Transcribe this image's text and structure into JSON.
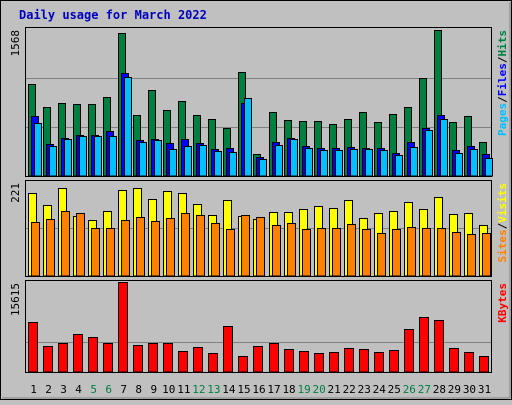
{
  "chart_data": {
    "type": "bar",
    "title": "Daily usage for March 2022",
    "categories": [
      "1",
      "2",
      "3",
      "4",
      "5",
      "6",
      "7",
      "8",
      "9",
      "10",
      "11",
      "12",
      "13",
      "14",
      "15",
      "16",
      "17",
      "18",
      "19",
      "20",
      "21",
      "22",
      "23",
      "24",
      "25",
      "26",
      "27",
      "28",
      "29",
      "30",
      "31"
    ],
    "weekend_days": [
      "5",
      "6",
      "12",
      "13",
      "19",
      "20",
      "26",
      "27"
    ],
    "panels": [
      {
        "ylabel_parts": [
          "Pages",
          "Files",
          "Hits"
        ],
        "ymax_label": "1568",
        "ymax": 1568,
        "gridlines": [
          0.33,
          0.66
        ],
        "series": [
          {
            "name": "Hits",
            "color": "#008040",
            "values": [
              980,
              740,
              780,
              770,
              770,
              840,
              1520,
              650,
              920,
              700,
              800,
              650,
              610,
              510,
              1110,
              230,
              680,
              600,
              590,
              590,
              550,
              610,
              680,
              580,
              660,
              740,
              1050,
              1560,
              580,
              640,
              360
            ]
          },
          {
            "name": "Files",
            "color": "#0000ff",
            "values": [
              640,
              340,
              400,
              440,
              440,
              480,
              1100,
              380,
              390,
              350,
              390,
              350,
              290,
              300,
              780,
              200,
              360,
              410,
              320,
              300,
              300,
              310,
              300,
              300,
              240,
              360,
              510,
              650,
              280,
              320,
              230
            ]
          },
          {
            "name": "Pages",
            "color": "#00c0ff",
            "values": [
              570,
              320,
              390,
              430,
              430,
              430,
              1060,
              360,
              380,
              290,
              320,
              330,
              270,
              260,
              830,
              180,
              330,
              390,
              300,
              280,
              280,
              290,
              290,
              280,
              220,
              310,
              490,
              610,
              240,
              290,
              190
            ]
          }
        ]
      },
      {
        "ylabel_parts": [
          "Sites",
          "Visits"
        ],
        "ymax_label": "221",
        "ymax": 221,
        "gridlines": [
          0.5
        ],
        "series": [
          {
            "name": "Visits",
            "color": "#ffff00",
            "values": [
              195,
              167,
              207,
              140,
              132,
              152,
              202,
              207,
              182,
              201,
              195,
              169,
              144,
              179,
              142,
              135,
              150,
              151,
              158,
              164,
              159,
              178,
              137,
              148,
              152,
              175,
              157,
              186,
              145,
              148,
              119
            ]
          },
          {
            "name": "Sites",
            "color": "#ff8000",
            "values": [
              126,
              133,
              152,
              147,
              114,
              113,
              131,
              138,
              129,
              136,
              147,
              144,
              124,
              111,
              143,
              138,
              121,
              124,
              111,
              112,
              114,
              122,
              110,
              100,
              111,
              116,
              112,
              112,
              104,
              98,
              100
            ]
          }
        ]
      },
      {
        "ylabel_parts": [
          "KBytes"
        ],
        "ymax_label": "15615",
        "ymax": 15615,
        "gridlines": [
          0.33
        ],
        "series": [
          {
            "name": "KBytes",
            "color": "#ff0000",
            "values": [
              8700,
              4500,
              5100,
              6600,
              6000,
              5050,
              15615,
              4650,
              5050,
              5050,
              3650,
              4260,
              3370,
              7930,
              2820,
              4510,
              5100,
              3930,
              3560,
              3280,
              3490,
              4160,
              3990,
              3420,
              3760,
              7410,
              9540,
              9100,
              4180,
              3530,
              2820
            ]
          }
        ]
      }
    ]
  }
}
